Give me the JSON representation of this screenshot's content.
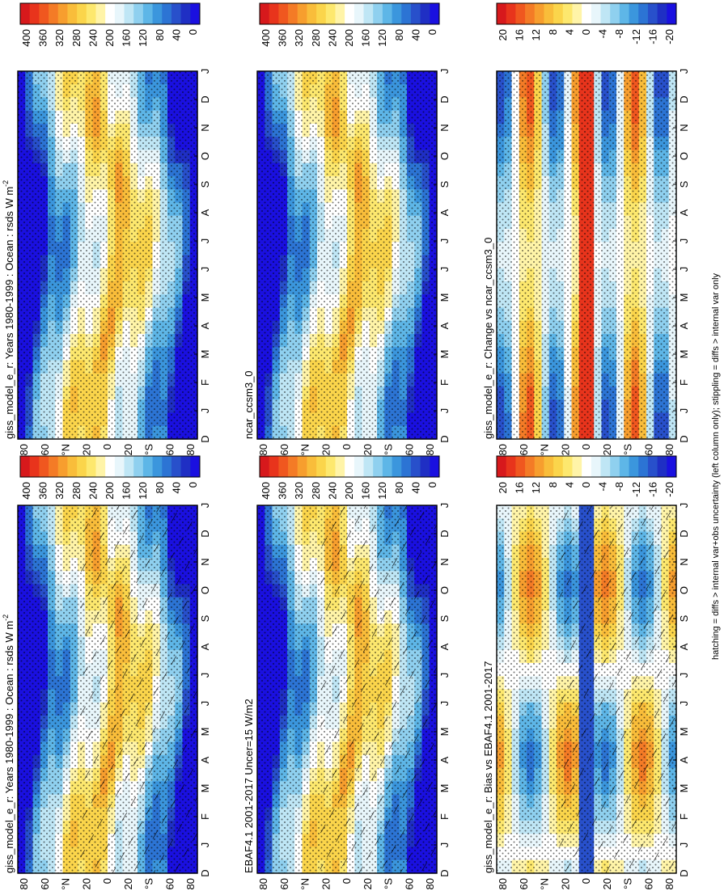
{
  "figure": {
    "footnote": "hatching = diffs > internal var+obs uncertainty (left column only); stippling = diffs > internal var only"
  },
  "chart_data": [
    {
      "type": "heatmap",
      "id": "p_model_left",
      "title": "giss_model_e_r: Years 1980-1999 : Ocean : rsds W m",
      "title_sup": "-2",
      "months": [
        "D",
        "J",
        "F",
        "M",
        "A",
        "M",
        "J",
        "J",
        "A",
        "S",
        "O",
        "N",
        "D",
        "J"
      ],
      "lat_labels": [
        "80",
        "60",
        "°N",
        "20",
        "0",
        "20",
        "°S",
        "60",
        "80"
      ],
      "colorbar": [
        "400",
        "360",
        "320",
        "280",
        "240",
        "200",
        "160",
        "120",
        "80",
        "40",
        "0"
      ],
      "kind": "abs",
      "hatch": true,
      "stipple": true
    },
    {
      "type": "heatmap",
      "id": "p_model_right",
      "title": "giss_model_e_r: Years 1980-1999 : Ocean : rsds W m",
      "title_sup": "-2",
      "months": [
        "D",
        "J",
        "F",
        "M",
        "A",
        "M",
        "J",
        "J",
        "A",
        "S",
        "O",
        "N",
        "D",
        "J"
      ],
      "lat_labels": [
        "80",
        "60",
        "°N",
        "20",
        "0",
        "20",
        "°S",
        "60",
        "80"
      ],
      "colorbar": [
        "400",
        "360",
        "320",
        "280",
        "240",
        "200",
        "160",
        "120",
        "80",
        "40",
        "0"
      ],
      "kind": "abs",
      "hatch": false,
      "stipple": true
    },
    {
      "type": "heatmap",
      "id": "p_obs",
      "title": "EBAF4.1 2001-2017 Uncer=15 W/m2",
      "title_sup": "",
      "months": [
        "D",
        "J",
        "F",
        "M",
        "A",
        "M",
        "J",
        "J",
        "A",
        "S",
        "O",
        "N",
        "D",
        "J"
      ],
      "lat_labels": [
        "80",
        "60",
        "°N",
        "20",
        "0",
        "20",
        "°S",
        "60",
        "80"
      ],
      "colorbar": [
        "400",
        "360",
        "320",
        "280",
        "240",
        "200",
        "160",
        "120",
        "80",
        "40",
        "0"
      ],
      "kind": "abs",
      "hatch": true,
      "stipple": true
    },
    {
      "type": "heatmap",
      "id": "p_ref",
      "title": "ncar_ccsm3_0",
      "title_sup": "",
      "months": [
        "D",
        "J",
        "F",
        "M",
        "A",
        "M",
        "J",
        "J",
        "A",
        "S",
        "O",
        "N",
        "D",
        "J"
      ],
      "lat_labels": [
        "80",
        "60",
        "°N",
        "20",
        "0",
        "20",
        "°S",
        "60",
        "80"
      ],
      "colorbar": [
        "400",
        "360",
        "320",
        "280",
        "240",
        "200",
        "160",
        "120",
        "80",
        "40",
        "0"
      ],
      "kind": "abs",
      "hatch": false,
      "stipple": true
    },
    {
      "type": "heatmap",
      "id": "p_bias",
      "title": "giss_model_e_r: Bias vs EBAF4.1 2001-2017",
      "title_sup": "",
      "months": [
        "D",
        "J",
        "F",
        "M",
        "A",
        "M",
        "J",
        "J",
        "A",
        "S",
        "O",
        "N",
        "D",
        "J"
      ],
      "lat_labels": [
        "80",
        "60",
        "°N",
        "20",
        "0",
        "20",
        "°S",
        "60",
        "80"
      ],
      "colorbar": [
        "20",
        "16",
        "12",
        "8",
        "4",
        "0",
        "-4",
        "-8",
        "-12",
        "-16",
        "-20"
      ],
      "kind": "bias",
      "hatch": true,
      "stipple": true
    },
    {
      "type": "heatmap",
      "id": "p_change",
      "title": "giss_model_e_r: Change vs ncar_ccsm3_0",
      "title_sup": "",
      "months": [
        "D",
        "J",
        "F",
        "M",
        "A",
        "M",
        "J",
        "J",
        "A",
        "S",
        "O",
        "N",
        "D",
        "J"
      ],
      "lat_labels": [
        "80",
        "60",
        "°N",
        "20",
        "0",
        "20",
        "°S",
        "60",
        "80"
      ],
      "colorbar": [
        "20",
        "16",
        "12",
        "8",
        "4",
        "0",
        "-4",
        "-8",
        "-12",
        "-16",
        "-20"
      ],
      "kind": "change",
      "hatch": false,
      "stipple": true
    }
  ],
  "palette": [
    "#d7191c",
    "#e8341c",
    "#f0571f",
    "#f47b26",
    "#f79e2e",
    "#f9bd3a",
    "#fbd54b",
    "#fde86e",
    "#fff4a8",
    "#ffffff",
    "#e8f6fb",
    "#bfe6f5",
    "#8fd0ef",
    "#5eb6e7",
    "#3b96dd",
    "#2c74d4",
    "#2850cb",
    "#1f2fc4",
    "#1a10e0"
  ]
}
